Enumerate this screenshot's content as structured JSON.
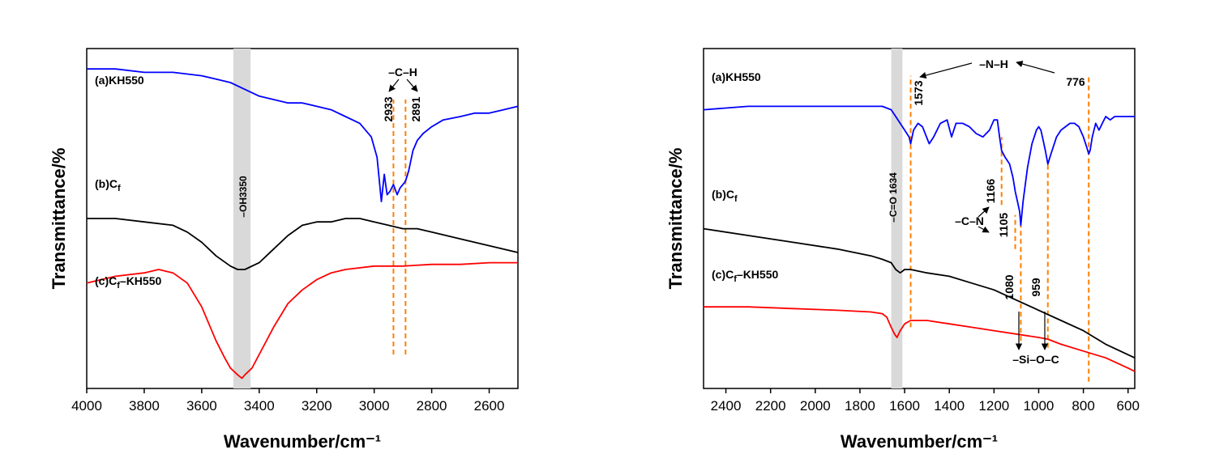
{
  "chart_data": [
    {
      "type": "line",
      "xlabel": "Wavenumber/cm⁻¹",
      "ylabel": "Transmittance/%",
      "xlim": [
        4000,
        2500
      ],
      "x_reversed": true,
      "xticks": [
        "4000",
        "3800",
        "3600",
        "3400",
        "3200",
        "3000",
        "2800",
        "2600"
      ],
      "ylim": [
        0,
        100
      ],
      "yticks_shown": false,
      "grid": false,
      "series": [
        {
          "name": "(a)KH550",
          "color": "#0000ff",
          "x": [
            4000,
            3900,
            3800,
            3700,
            3600,
            3550,
            3500,
            3450,
            3400,
            3350,
            3300,
            3250,
            3200,
            3150,
            3100,
            3050,
            3010,
            2990,
            2975,
            2965,
            2955,
            2945,
            2933,
            2920,
            2910,
            2900,
            2891,
            2880,
            2865,
            2850,
            2830,
            2800,
            2760,
            2700,
            2650,
            2600,
            2550,
            2500
          ],
          "y": [
            94,
            94,
            93,
            93,
            92,
            91,
            90,
            88,
            86,
            85,
            84,
            84,
            83,
            82,
            80,
            78,
            74,
            68,
            55,
            63,
            57,
            58,
            60,
            57,
            59,
            60,
            61,
            64,
            70,
            73,
            75,
            77,
            79,
            80,
            81,
            81,
            82,
            83
          ]
        },
        {
          "name": "(b)C",
          "name_subscript": "f",
          "color": "#000000",
          "x": [
            4000,
            3900,
            3800,
            3700,
            3650,
            3600,
            3550,
            3500,
            3475,
            3450,
            3400,
            3350,
            3300,
            3250,
            3200,
            3150,
            3100,
            3050,
            3000,
            2950,
            2900,
            2850,
            2800,
            2700,
            2600,
            2500
          ],
          "y": [
            50,
            50,
            49,
            48,
            46,
            43,
            39,
            36,
            35,
            35,
            37,
            41,
            45,
            48,
            49,
            49,
            50,
            50,
            49,
            48,
            47,
            47,
            46,
            44,
            42,
            40
          ]
        },
        {
          "name": "(c)C",
          "name_subscript": "f",
          "name_suffix": "–KH550",
          "color": "#ff0000",
          "x": [
            4000,
            3900,
            3800,
            3750,
            3700,
            3650,
            3600,
            3550,
            3520,
            3500,
            3475,
            3460,
            3450,
            3425,
            3400,
            3350,
            3300,
            3250,
            3200,
            3150,
            3100,
            3000,
            2900,
            2800,
            2700,
            2600,
            2500
          ],
          "y": [
            31,
            33,
            34,
            35,
            34,
            31,
            24,
            14,
            9,
            6,
            4,
            3,
            4,
            6,
            10,
            18,
            25,
            29,
            32,
            34,
            35,
            36,
            36,
            36.5,
            36.5,
            37,
            37
          ]
        }
      ],
      "shaded_band": {
        "x": [
          3490,
          3430
        ],
        "color": "#d9d9d9"
      },
      "markers": [
        {
          "x": 2933,
          "color": "#ff8000",
          "style": "dashed",
          "y_from": 10,
          "y_to": 85
        },
        {
          "x": 2891,
          "color": "#ff8000",
          "style": "dashed",
          "y_from": 10,
          "y_to": 85
        }
      ],
      "annotations": [
        {
          "text": "–C–H",
          "kind": "group"
        },
        {
          "text": "2933",
          "kind": "peak"
        },
        {
          "text": "2891",
          "kind": "peak"
        },
        {
          "text": "–OH3350",
          "kind": "peak"
        }
      ]
    },
    {
      "type": "line",
      "xlabel": "Wavenumber/cm⁻¹",
      "ylabel": "Transmittance/%",
      "xlim": [
        2500,
        570
      ],
      "x_reversed": true,
      "xticks": [
        "2400",
        "2200",
        "2000",
        "1800",
        "1600",
        "1400",
        "1200",
        "1000",
        "800",
        "600"
      ],
      "ylim": [
        0,
        100
      ],
      "yticks_shown": false,
      "grid": false,
      "series": [
        {
          "name": "(a)KH550",
          "color": "#0000ff",
          "x": [
            2500,
            2300,
            2100,
            1900,
            1750,
            1700,
            1660,
            1640,
            1620,
            1600,
            1580,
            1573,
            1560,
            1540,
            1520,
            1490,
            1470,
            1440,
            1410,
            1390,
            1370,
            1340,
            1310,
            1280,
            1250,
            1220,
            1200,
            1185,
            1175,
            1166,
            1150,
            1130,
            1115,
            1105,
            1095,
            1085,
            1080,
            1070,
            1050,
            1030,
            1010,
            1000,
            990,
            980,
            970,
            959,
            950,
            940,
            920,
            900,
            880,
            860,
            840,
            820,
            800,
            785,
            776,
            770,
            760,
            745,
            730,
            715,
            700,
            680,
            660,
            640,
            620,
            600,
            570
          ],
          "y": [
            82,
            83,
            83,
            83,
            83,
            83,
            82,
            80,
            78,
            76,
            74,
            72,
            76,
            78,
            77,
            72,
            74,
            78,
            79,
            74,
            78,
            78,
            77,
            75,
            74,
            76,
            79,
            79,
            74,
            70,
            68,
            66,
            62,
            58,
            55,
            52,
            48,
            55,
            65,
            72,
            76,
            77,
            76,
            73,
            70,
            66,
            68,
            70,
            74,
            76,
            77,
            78,
            78,
            77,
            74,
            71,
            69,
            70,
            74,
            78,
            76,
            78,
            80,
            79,
            80,
            80,
            80,
            80,
            80
          ]
        },
        {
          "name": "(b)C",
          "name_subscript": "f",
          "color": "#000000",
          "x": [
            2500,
            2300,
            2100,
            1900,
            1750,
            1700,
            1660,
            1640,
            1620,
            1600,
            1573,
            1500,
            1400,
            1300,
            1200,
            1100,
            1000,
            900,
            800,
            700,
            570
          ],
          "y": [
            47,
            45,
            43,
            41,
            39,
            38,
            37,
            35,
            34,
            35,
            35,
            34,
            33,
            31,
            29,
            26,
            23,
            20,
            17,
            13,
            9
          ]
        },
        {
          "name": "(c)C",
          "name_subscript": "f",
          "name_suffix": "–KH550",
          "color": "#ff0000",
          "x": [
            2500,
            2300,
            2100,
            1900,
            1750,
            1700,
            1680,
            1660,
            1645,
            1634,
            1620,
            1600,
            1573,
            1500,
            1400,
            1300,
            1200,
            1100,
            1000,
            959,
            900,
            800,
            700,
            600,
            570
          ],
          "y": [
            24,
            24,
            23.5,
            23,
            22.5,
            22,
            21,
            18,
            16,
            15,
            17,
            19,
            20,
            20,
            19,
            18,
            17,
            16,
            15,
            14.5,
            13,
            11,
            9,
            6,
            5
          ]
        }
      ],
      "shaded_band": {
        "x": [
          1660,
          1610
        ],
        "color": "#d9d9d9"
      },
      "markers": [
        {
          "x": 1573,
          "color": "#ff8000",
          "style": "dashed",
          "y_from": 18,
          "y_to": 92
        },
        {
          "x": 1166,
          "color": "#ff8000",
          "style": "dashed",
          "y_from": 54,
          "y_to": 74
        },
        {
          "x": 1105,
          "color": "#ff8000",
          "style": "dashed",
          "y_from": 41,
          "y_to": 51
        },
        {
          "x": 1080,
          "color": "#ff8000",
          "style": "dashed",
          "y_from": 14,
          "y_to": 48
        },
        {
          "x": 959,
          "color": "#ff8000",
          "style": "dashed",
          "y_from": 12,
          "y_to": 66
        },
        {
          "x": 776,
          "color": "#ff8000",
          "style": "dashed",
          "y_from": 2,
          "y_to": 92
        }
      ],
      "annotations": [
        {
          "text": "–N–H",
          "kind": "group"
        },
        {
          "text": "1573",
          "kind": "peak"
        },
        {
          "text": "776",
          "kind": "peak"
        },
        {
          "text": "–C=O 1634",
          "kind": "peak"
        },
        {
          "text": "1166",
          "kind": "peak"
        },
        {
          "text": "–C–N",
          "kind": "group"
        },
        {
          "text": "1105",
          "kind": "peak"
        },
        {
          "text": "1080",
          "kind": "peak"
        },
        {
          "text": "959",
          "kind": "peak"
        },
        {
          "text": "–Si–O–C",
          "kind": "group"
        }
      ]
    }
  ]
}
